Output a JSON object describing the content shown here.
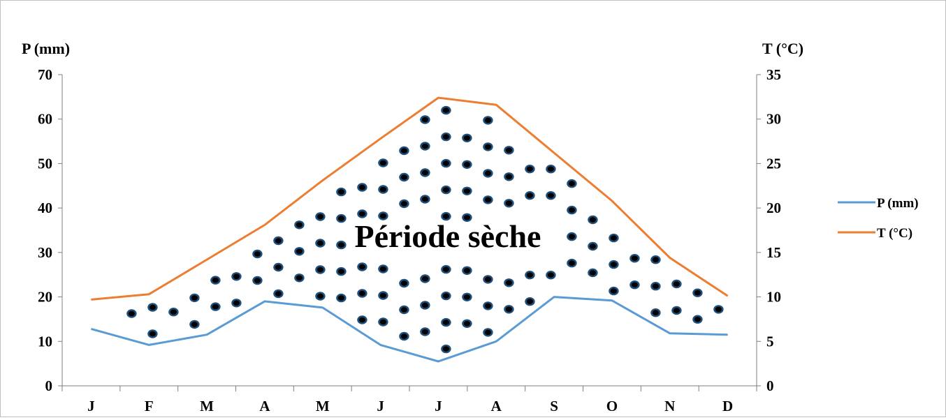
{
  "chart_data": {
    "type": "line",
    "categories": [
      "J",
      "F",
      "M",
      "A",
      "M",
      "J",
      "J",
      "A",
      "S",
      "O",
      "N",
      "D"
    ],
    "series": [
      {
        "name": "P (mm)",
        "axis": "left",
        "color": "#5b9bd5",
        "values": [
          12.8,
          9.2,
          11.5,
          19.0,
          17.6,
          9.2,
          5.5,
          10.0,
          20.0,
          19.2,
          11.8,
          11.5
        ]
      },
      {
        "name": "T (°C)",
        "axis": "right",
        "color": "#ed7d31",
        "values": [
          9.7,
          10.3,
          14.2,
          18.1,
          23.1,
          27.8,
          32.4,
          31.6,
          26.2,
          20.8,
          14.4,
          10.1
        ]
      }
    ],
    "ylabel_left": "P (mm)",
    "ylabel_right": "T (°C)",
    "ylim_left": [
      0,
      70
    ],
    "ylim_right": [
      0,
      35
    ],
    "yticks_left": [
      "0",
      "10",
      "20",
      "30",
      "40",
      "50",
      "60",
      "70"
    ],
    "yticks_right": [
      "0",
      "5",
      "10",
      "15",
      "20",
      "25",
      "30",
      "35"
    ],
    "grid": false,
    "legend": "right",
    "annotation": {
      "text": "Période sèche",
      "fill_pattern": "dotted",
      "dot_color": "#000000",
      "dot_ring_color": "#1f4e79"
    }
  }
}
